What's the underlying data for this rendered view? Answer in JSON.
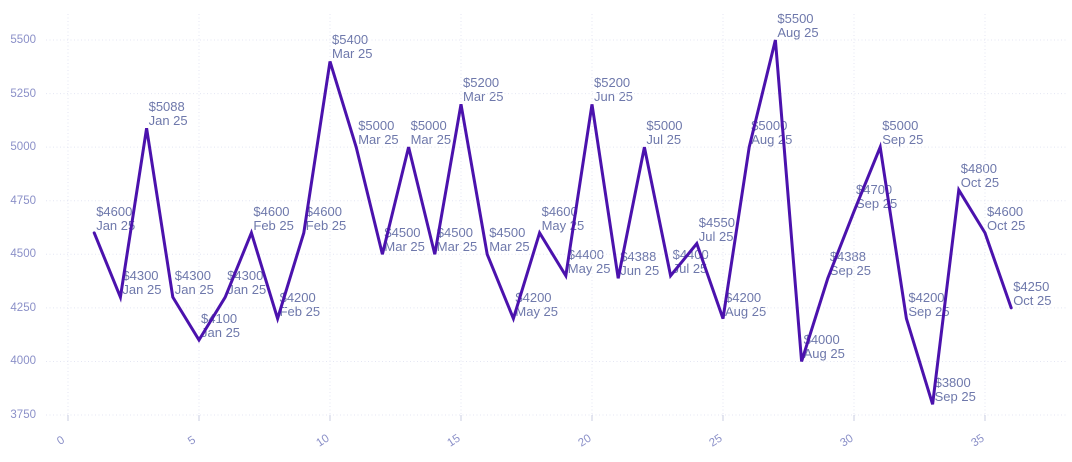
{
  "chart_data": {
    "type": "line",
    "title": "",
    "xlabel": "",
    "ylabel": "",
    "grid": true,
    "legend": false,
    "x_tick_values": [
      0,
      5,
      10,
      15,
      20,
      25,
      30,
      35
    ],
    "x_tick_labels": [
      "0",
      "5",
      "10",
      "15",
      "20",
      "25",
      "30",
      "35"
    ],
    "y_tick_values": [
      3750,
      4000,
      4250,
      4500,
      4750,
      5000,
      5250,
      5500
    ],
    "y_tick_labels": [
      "3750",
      "4000",
      "4250",
      "4500",
      "4750",
      "5000",
      "5250",
      "5500"
    ],
    "x_range": [
      0,
      36
    ],
    "y_range": [
      3750,
      5500
    ],
    "line_color": "#4b12ad",
    "points": [
      {
        "x": 1,
        "value": 4600,
        "label": "$4600",
        "period": "Jan 25"
      },
      {
        "x": 2,
        "value": 4300,
        "label": "$4300",
        "period": "Jan 25"
      },
      {
        "x": 3,
        "value": 5088,
        "label": "$5088",
        "period": "Jan 25"
      },
      {
        "x": 4,
        "value": 4300,
        "label": "$4300",
        "period": "Jan 25"
      },
      {
        "x": 5,
        "value": 4100,
        "label": "$4100",
        "period": "Jan 25"
      },
      {
        "x": 6,
        "value": 4300,
        "label": "$4300",
        "period": "Jan 25"
      },
      {
        "x": 7,
        "value": 4600,
        "label": "$4600",
        "period": "Feb 25"
      },
      {
        "x": 8,
        "value": 4200,
        "label": "$4200",
        "period": "Feb 25"
      },
      {
        "x": 9,
        "value": 4600,
        "label": "$4600",
        "period": "Feb 25"
      },
      {
        "x": 10,
        "value": 5400,
        "label": "$5400",
        "period": "Mar 25"
      },
      {
        "x": 11,
        "value": 5000,
        "label": "$5000",
        "period": "Mar 25"
      },
      {
        "x": 12,
        "value": 4500,
        "label": "$4500",
        "period": "Mar 25"
      },
      {
        "x": 13,
        "value": 5000,
        "label": "$5000",
        "period": "Mar 25"
      },
      {
        "x": 14,
        "value": 4500,
        "label": "$4500",
        "period": "Mar 25"
      },
      {
        "x": 15,
        "value": 5200,
        "label": "$5200",
        "period": "Mar 25"
      },
      {
        "x": 16,
        "value": 4500,
        "label": "$4500",
        "period": "Mar 25"
      },
      {
        "x": 17,
        "value": 4200,
        "label": "$4200",
        "period": "May 25"
      },
      {
        "x": 18,
        "value": 4600,
        "label": "$4600",
        "period": "May 25"
      },
      {
        "x": 19,
        "value": 4400,
        "label": "$4400",
        "period": "May 25"
      },
      {
        "x": 20,
        "value": 5200,
        "label": "$5200",
        "period": "Jun 25"
      },
      {
        "x": 21,
        "value": 4388,
        "label": "$4388",
        "period": "Jun 25"
      },
      {
        "x": 22,
        "value": 5000,
        "label": "$5000",
        "period": "Jul 25"
      },
      {
        "x": 23,
        "value": 4400,
        "label": "$4400",
        "period": "Jul 25"
      },
      {
        "x": 24,
        "value": 4550,
        "label": "$4550",
        "period": "Jul 25"
      },
      {
        "x": 25,
        "value": 4200,
        "label": "$4200",
        "period": "Aug 25"
      },
      {
        "x": 26,
        "value": 5000,
        "label": "$5000",
        "period": "Aug 25"
      },
      {
        "x": 27,
        "value": 5500,
        "label": "$5500",
        "period": "Aug 25"
      },
      {
        "x": 28,
        "value": 4000,
        "label": "$4000",
        "period": "Aug 25"
      },
      {
        "x": 29,
        "value": 4388,
        "label": "$4388",
        "period": "Sep 25"
      },
      {
        "x": 30,
        "value": 4700,
        "label": "$4700",
        "period": "Sep 25"
      },
      {
        "x": 31,
        "value": 5000,
        "label": "$5000",
        "period": "Sep 25"
      },
      {
        "x": 32,
        "value": 4200,
        "label": "$4200",
        "period": "Sep 25"
      },
      {
        "x": 33,
        "value": 3800,
        "label": "$3800",
        "period": "Sep 25"
      },
      {
        "x": 34,
        "value": 4800,
        "label": "$4800",
        "period": "Oct 25"
      },
      {
        "x": 35,
        "value": 4600,
        "label": "$4600",
        "period": "Oct 25"
      },
      {
        "x": 36,
        "value": 4250,
        "label": "$4250",
        "period": "Oct 25"
      }
    ]
  },
  "colors": {
    "background": "#ffffff",
    "line": "#4b12ad",
    "gridline": "#e4e6f3",
    "tick_mark": "#c9cde2",
    "tick_label": "#8b90c8",
    "data_label": "#6e78ab"
  }
}
